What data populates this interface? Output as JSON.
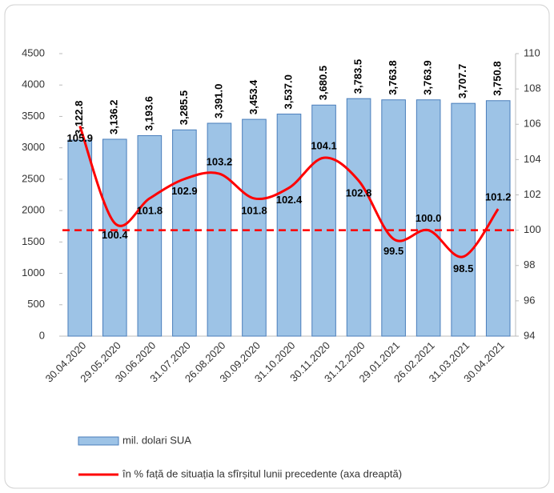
{
  "chart_data": {
    "type": "bar_line",
    "categories": [
      "30.04.2020",
      "29.05.2020",
      "30.06.2020",
      "31.07.2020",
      "26.08.2020",
      "30.09.2020",
      "31.10.2020",
      "30.11.2020",
      "31.12.2020",
      "29.01.2021",
      "26.02.2021",
      "31.03.2021",
      "30.04.2021"
    ],
    "series": [
      {
        "name": "mil. dolari SUA",
        "type": "bar",
        "color": "#9dc3e6",
        "border": "#4a7ebb",
        "values": [
          3122.8,
          3136.2,
          3193.6,
          3285.5,
          3391.0,
          3453.4,
          3537.0,
          3680.5,
          3783.5,
          3763.8,
          3763.9,
          3707.7,
          3750.8
        ],
        "value_labels": [
          "3,122.8",
          "3,136.2",
          "3,193.6",
          "3,285.5",
          "3,391.0",
          "3,453.4",
          "3,537.0",
          "3,680.5",
          "3,783.5",
          "3,763.8",
          "3,763.9",
          "3,707.7",
          "3,750.8"
        ]
      },
      {
        "name": "în % față de situația la sfîrșitul lunii precedente (axa dreaptă)",
        "type": "line",
        "axis": "y2",
        "color": "#ff0000",
        "values": [
          105.9,
          100.4,
          101.8,
          102.9,
          103.2,
          101.8,
          102.4,
          104.1,
          102.8,
          99.5,
          100.0,
          98.5,
          101.2
        ],
        "value_labels": [
          "105.9",
          "100.4",
          "101.8",
          "102.9",
          "103.2",
          "101.8",
          "102.4",
          "104.1",
          "102.8",
          "99.5",
          "100.0",
          "98.5",
          "101.2"
        ]
      }
    ],
    "reference_line": {
      "value": 100,
      "axis": "y2",
      "color": "#ff0000",
      "dashed": true
    },
    "ylim": [
      0,
      4500
    ],
    "yticks": [
      0,
      500,
      1000,
      1500,
      2000,
      2500,
      3000,
      3500,
      4000,
      4500
    ],
    "y2lim": [
      94,
      110
    ],
    "y2ticks": [
      94,
      96,
      98,
      100,
      102,
      104,
      106,
      108,
      110
    ],
    "legend": "bottom"
  }
}
